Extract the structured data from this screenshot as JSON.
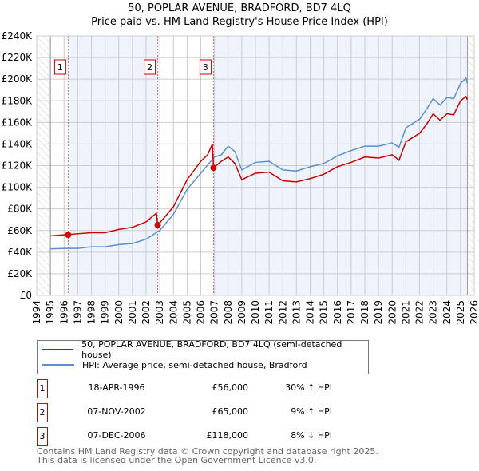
{
  "chart_data": {
    "type": "line",
    "title": "50, POPLAR AVENUE, BRADFORD, BD7 4LQ",
    "subtitle": "Price paid vs. HM Land Registry's House Price Index (HPI)",
    "xlim": [
      1994,
      2026
    ],
    "ylim": [
      0,
      240000
    ],
    "x_ticks": [
      "1994",
      "1995",
      "1996",
      "1997",
      "1998",
      "1999",
      "2000",
      "2001",
      "2002",
      "2003",
      "2004",
      "2005",
      "2006",
      "2007",
      "2008",
      "2009",
      "2010",
      "2011",
      "2012",
      "2013",
      "2014",
      "2015",
      "2016",
      "2017",
      "2018",
      "2019",
      "2020",
      "2021",
      "2022",
      "2023",
      "2024",
      "2025",
      "2026"
    ],
    "y_ticks": [
      {
        "v": 0,
        "label": "£0"
      },
      {
        "v": 20000,
        "label": "£20K"
      },
      {
        "v": 40000,
        "label": "£40K"
      },
      {
        "v": 60000,
        "label": "£60K"
      },
      {
        "v": 80000,
        "label": "£80K"
      },
      {
        "v": 100000,
        "label": "£100K"
      },
      {
        "v": 120000,
        "label": "£120K"
      },
      {
        "v": 140000,
        "label": "£140K"
      },
      {
        "v": 160000,
        "label": "£160K"
      },
      {
        "v": 180000,
        "label": "£180K"
      },
      {
        "v": 200000,
        "label": "£200K"
      },
      {
        "v": 220000,
        "label": "£220K"
      },
      {
        "v": 240000,
        "label": "£240K"
      }
    ],
    "series": [
      {
        "name": "50, POPLAR AVENUE, BRADFORD, BD7 4LQ (semi-detached house)",
        "color": "#cc0000",
        "x": [
          1995,
          1996,
          1997,
          1998,
          1999,
          2000,
          2001,
          2002,
          2002.75,
          2002.85,
          2003,
          2004,
          2005,
          2006,
          2006.5,
          2006.85,
          2006.93,
          2007.5,
          2008,
          2008.5,
          2009,
          2010,
          2011,
          2012,
          2013,
          2014,
          2015,
          2016,
          2017,
          2018,
          2019,
          2020,
          2020.5,
          2021,
          2022,
          2022.5,
          2023,
          2023.5,
          2024,
          2024.5,
          2025,
          2025.4,
          2025.5
        ],
        "y": [
          55000,
          56000,
          57000,
          58000,
          58000,
          61000,
          63000,
          68000,
          76000,
          65000,
          67000,
          82000,
          107000,
          124000,
          130000,
          140000,
          118000,
          124000,
          128000,
          122000,
          107000,
          113000,
          114000,
          106000,
          105000,
          108000,
          112000,
          119000,
          123000,
          128000,
          127000,
          130000,
          125000,
          142000,
          150000,
          158000,
          168000,
          162000,
          168000,
          167000,
          180000,
          184000,
          181000
        ]
      },
      {
        "name": "HPI: Average price, semi-detached house, Bradford",
        "color": "#5b8fd6",
        "x": [
          1995,
          1996,
          1997,
          1998,
          1999,
          2000,
          2001,
          2002,
          2003,
          2004,
          2005,
          2006,
          2007,
          2007.5,
          2008,
          2008.5,
          2009,
          2010,
          2011,
          2012,
          2013,
          2014,
          2015,
          2016,
          2017,
          2018,
          2019,
          2020,
          2020.5,
          2021,
          2022,
          2022.5,
          2023,
          2023.5,
          2024,
          2024.5,
          2025,
          2025.4,
          2025.5
        ],
        "y": [
          43000,
          43500,
          43500,
          45000,
          45000,
          47000,
          48000,
          52000,
          60000,
          75000,
          98000,
          113000,
          128000,
          130000,
          138000,
          133000,
          116000,
          123000,
          124000,
          116000,
          115000,
          119000,
          122000,
          129000,
          134000,
          138000,
          138000,
          141000,
          137000,
          155000,
          163000,
          172000,
          182000,
          176000,
          183000,
          182000,
          196000,
          201000,
          196000
        ]
      }
    ],
    "sales": [
      {
        "label": "1",
        "x": 1996.3,
        "y": 56000
      },
      {
        "label": "2",
        "x": 2002.85,
        "y": 65000
      },
      {
        "label": "3",
        "x": 2006.93,
        "y": 118000
      }
    ],
    "data_end": 2025.5,
    "grid": true
  },
  "legend": {
    "property": "50, POPLAR AVENUE, BRADFORD, BD7 4LQ (semi-detached house)",
    "hpi": "HPI: Average price, semi-detached house, Bradford"
  },
  "transactions": [
    {
      "num": "1",
      "date": "18-APR-1996",
      "price": "£56,000",
      "hpi": "30% ↑ HPI"
    },
    {
      "num": "2",
      "date": "07-NOV-2002",
      "price": "£65,000",
      "hpi": "9% ↑ HPI"
    },
    {
      "num": "3",
      "date": "07-DEC-2006",
      "price": "£118,000",
      "hpi": "8% ↓ HPI"
    }
  ],
  "footer": {
    "line1": "Contains HM Land Registry data © Crown copyright and database right 2025.",
    "line2": "This data is licensed under the Open Government Licence v3.0."
  }
}
